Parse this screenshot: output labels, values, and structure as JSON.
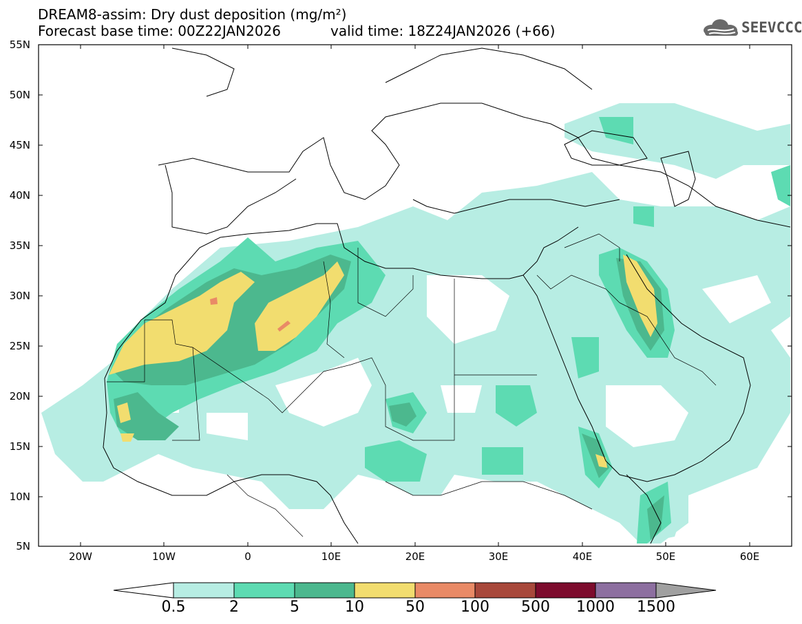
{
  "header": {
    "title_line1": "DREAM8-assim: Dry dust deposition (mg/m²)",
    "title_line2": "Forecast base time: 00Z22JAN2026",
    "valid_time": "valid time: 18Z24JAN2026 (+66)",
    "logo_text": "SEEVCCC"
  },
  "axes": {
    "lat_labels": [
      "55N",
      "50N",
      "45N",
      "40N",
      "35N",
      "30N",
      "25N",
      "20N",
      "15N",
      "10N",
      "5N"
    ],
    "lon_labels": [
      "20W",
      "10W",
      "0",
      "10E",
      "20E",
      "30E",
      "40E",
      "50E",
      "60E"
    ]
  },
  "colorbar": {
    "labels": [
      "0.5",
      "2",
      "5",
      "10",
      "50",
      "100",
      "500",
      "1000",
      "1500"
    ],
    "colors": [
      "#b7ede3",
      "#5ddbb2",
      "#4cb88e",
      "#f2dd6f",
      "#e98a66",
      "#a8483b",
      "#7d0b2d",
      "#8d6fa0",
      "#a0a0a0"
    ],
    "under_color": "#ffffff"
  },
  "map": {
    "region": "North Africa, Europe and Middle East",
    "lat_range": [
      5,
      55
    ],
    "lon_range": [
      -25,
      65
    ]
  }
}
